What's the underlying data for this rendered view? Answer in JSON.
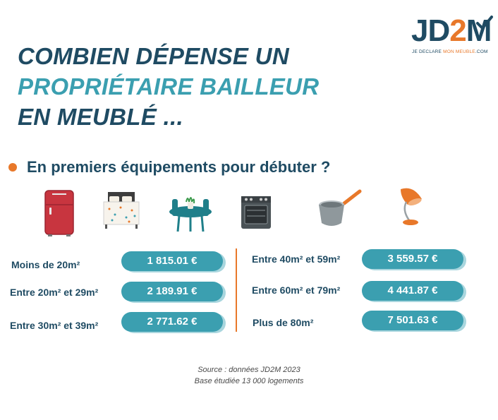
{
  "logo": {
    "jd": "JD",
    "two": "2",
    "m": "M",
    "tag_prefix": "JE DECLARE ",
    "tag_highlight": "MON MEUBLE",
    "tag_suffix": ".COM"
  },
  "title": {
    "line1": "COMBIEN DÉPENSE UN",
    "line2": "PROPRIÉTAIRE BAILLEUR",
    "line3": "EN MEUBLÉ ..."
  },
  "section": {
    "label": "En premiers équipements pour débuter ?"
  },
  "icons": [
    "fridge-icon",
    "bed-icon",
    "table-icon",
    "oven-icon",
    "saucepan-icon",
    "lamp-icon"
  ],
  "rows_left": [
    {
      "label": "Moins de 20m²",
      "price": "1 815.01 €"
    },
    {
      "label": "Entre 20m² et 29m²",
      "price": "2 189.91 €"
    },
    {
      "label": "Entre 30m² et 39m²",
      "price": "2 771.62 €"
    }
  ],
  "rows_right": [
    {
      "label": "Entre 40m² et 59m²",
      "price": "3 559.57 €"
    },
    {
      "label": "Entre 60m² et 79m²",
      "price": "4 441.87 €"
    },
    {
      "label": "Plus de 80m²",
      "price": "7 501.63 €"
    }
  ],
  "source": {
    "line1": "Source :  données JD2M 2023",
    "line2": "Base étudiée 13 000 logements"
  },
  "colors": {
    "navy": "#1f4b63",
    "teal": "#3b9fb0",
    "orange": "#e8782a"
  }
}
